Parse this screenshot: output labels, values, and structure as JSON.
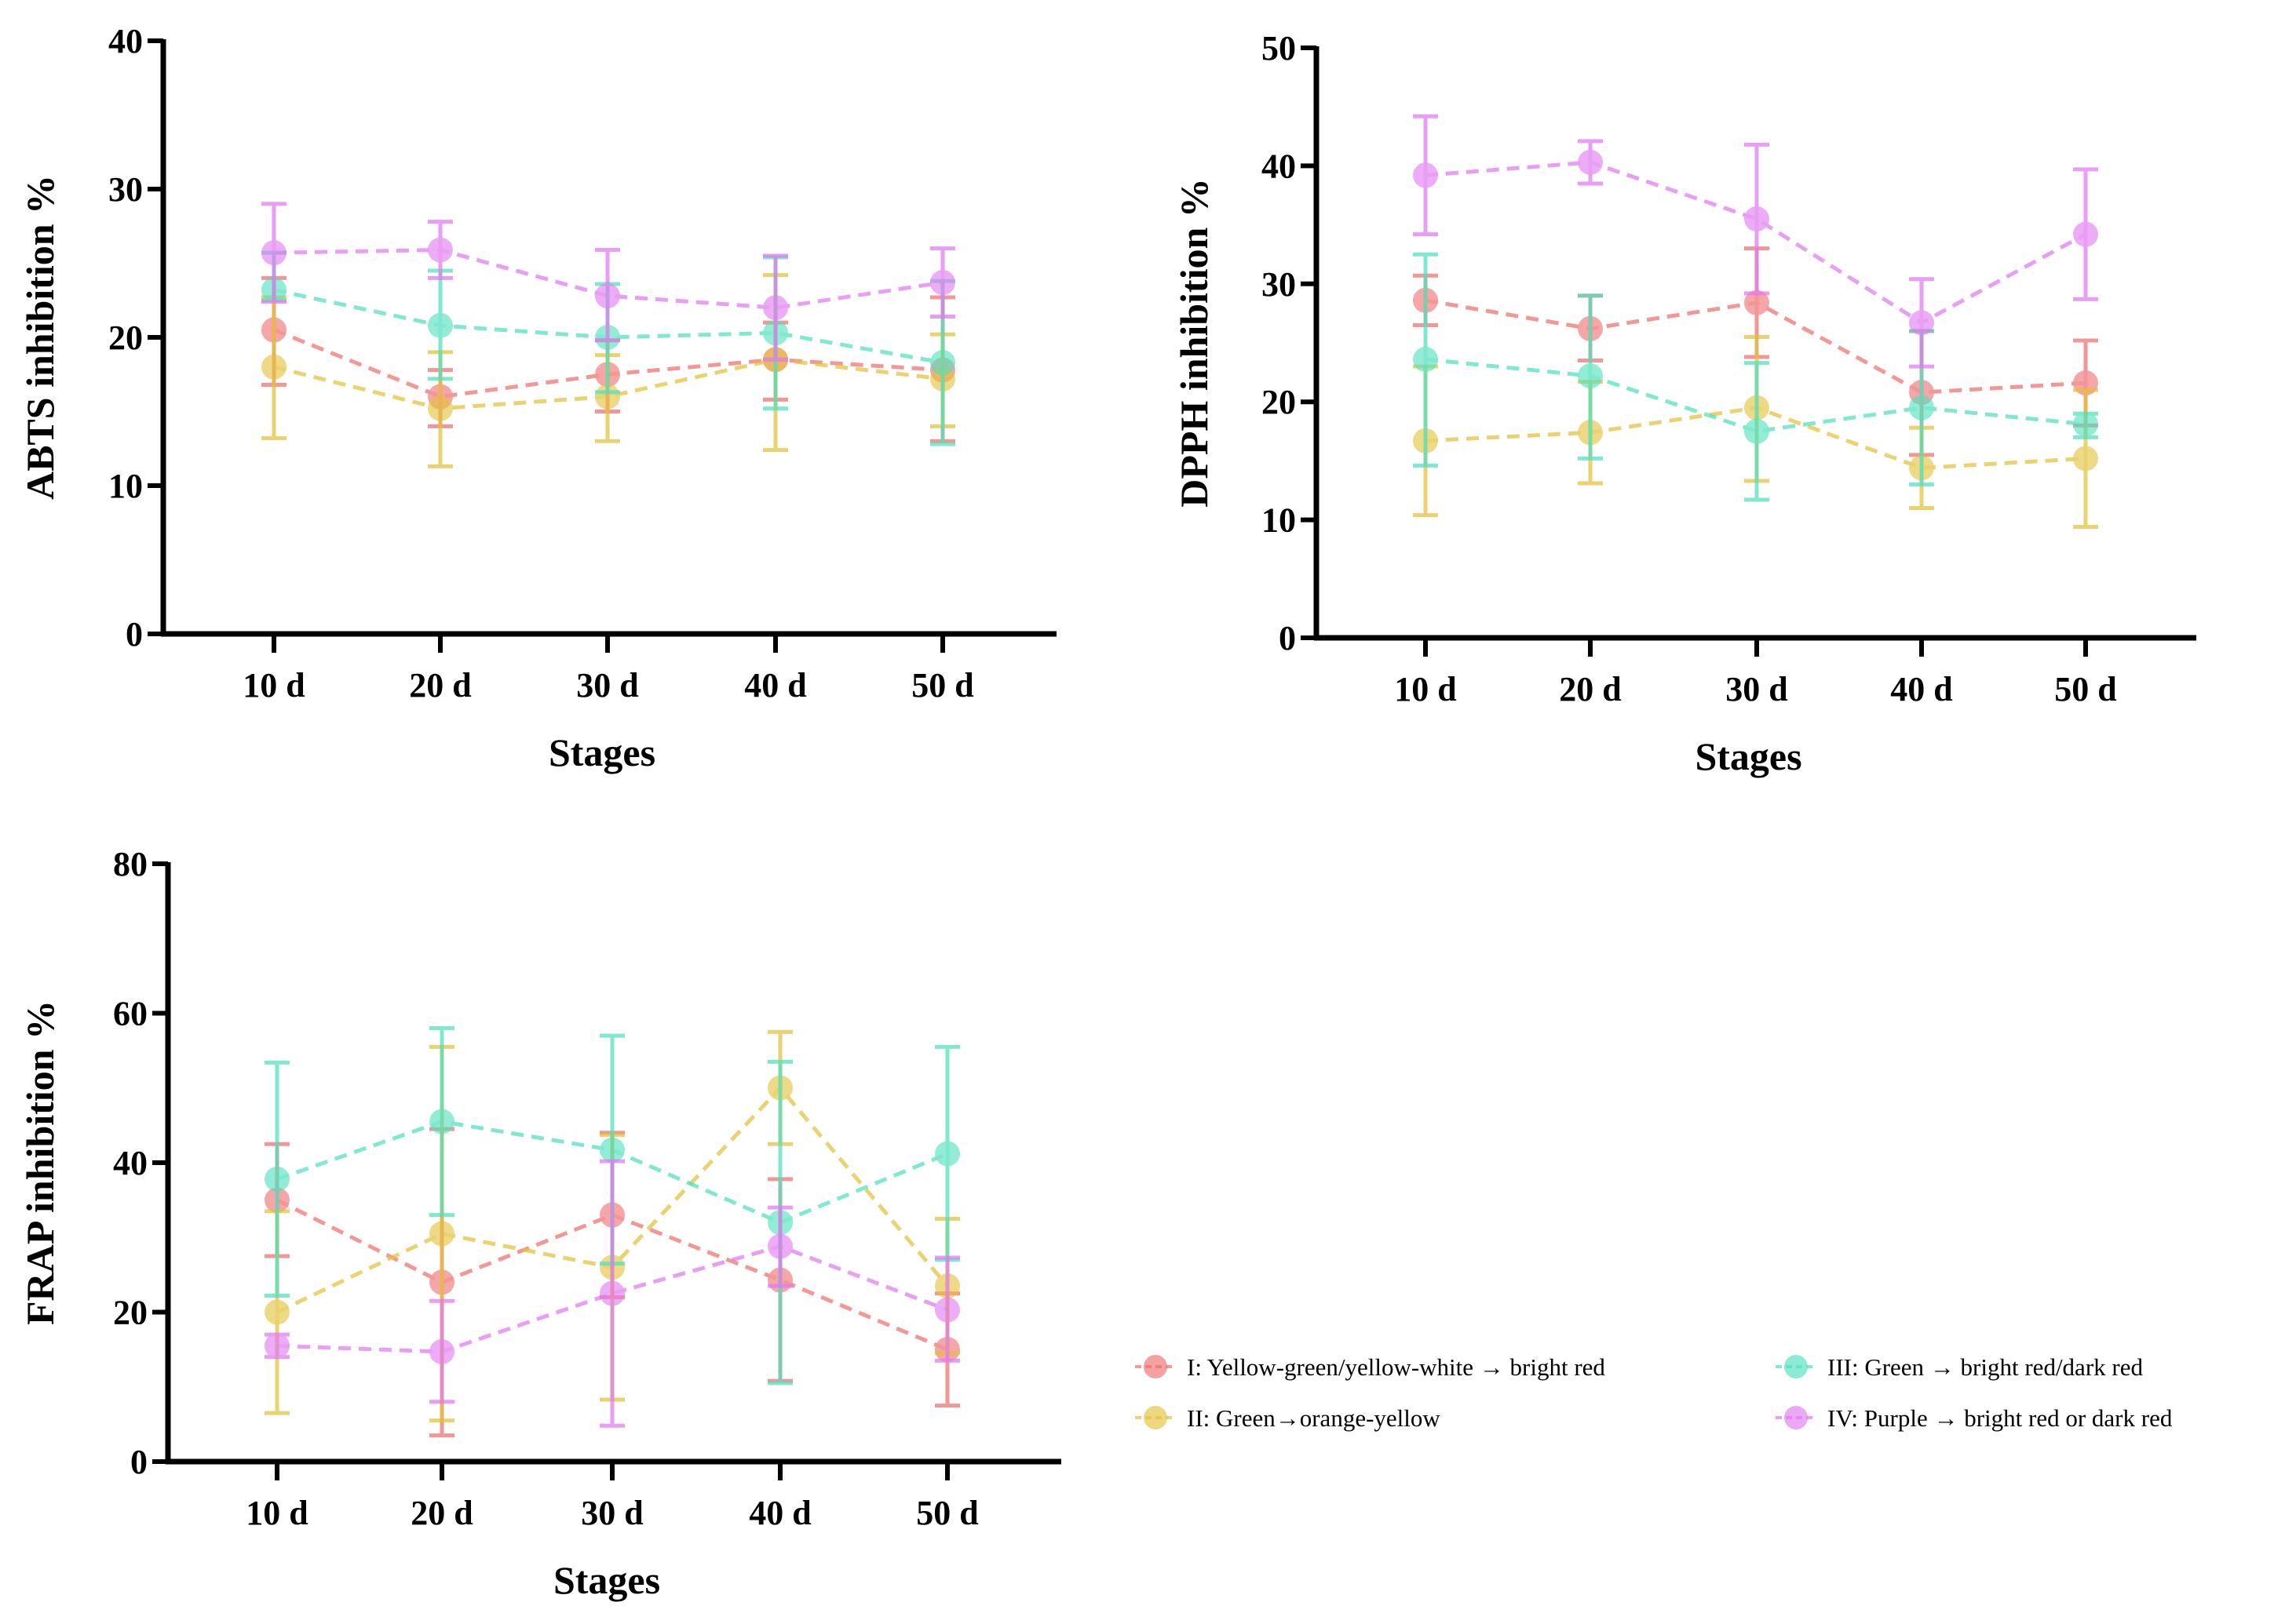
{
  "colors": {
    "I": "#ef6f6f",
    "II": "#e3c23a",
    "III": "#4fe0bd",
    "IV": "#e07af0"
  },
  "legend": [
    {
      "key": "I",
      "label": "I: Yellow-green/yellow-white → bright red"
    },
    {
      "key": "II",
      "label": "II: Green→orange-yellow"
    },
    {
      "key": "III",
      "label": "III: Green → bright red/dark red"
    },
    {
      "key": "IV",
      "label": "IV: Purple → bright red or dark red"
    }
  ],
  "chart_data": [
    {
      "type": "line",
      "title": "",
      "xlabel": "Stages",
      "ylabel": "ABTS inhibition %",
      "categories": [
        "10 d",
        "20 d",
        "30 d",
        "40 d",
        "50 d"
      ],
      "ylim": [
        0,
        40
      ],
      "yticks": [
        0,
        10,
        20,
        30,
        40
      ],
      "series": [
        {
          "key": "I",
          "mean": [
            20.5,
            16.0,
            17.5,
            18.5,
            17.8
          ],
          "lo": [
            16.8,
            14.0,
            15.0,
            15.8,
            13.0
          ],
          "hi": [
            24.0,
            17.8,
            19.8,
            21.0,
            22.7
          ]
        },
        {
          "key": "II",
          "mean": [
            18.0,
            15.2,
            16.0,
            18.5,
            17.2
          ],
          "lo": [
            13.2,
            11.3,
            13.0,
            12.4,
            14.0
          ],
          "hi": [
            22.7,
            19.0,
            18.8,
            24.2,
            20.2
          ]
        },
        {
          "key": "III",
          "mean": [
            23.2,
            20.8,
            20.0,
            20.3,
            18.3
          ],
          "lo": [
            22.5,
            17.2,
            16.3,
            15.2,
            12.8
          ],
          "hi": [
            25.7,
            24.5,
            23.6,
            25.4,
            23.8
          ]
        },
        {
          "key": "IV",
          "mean": [
            25.7,
            25.9,
            22.8,
            22.0,
            23.7
          ],
          "lo": [
            22.4,
            24.0,
            19.8,
            18.5,
            21.4
          ],
          "hi": [
            29.0,
            27.8,
            25.9,
            25.5,
            26.0
          ]
        }
      ]
    },
    {
      "type": "line",
      "title": "",
      "xlabel": "Stages",
      "ylabel": "DPPH inhibition %",
      "categories": [
        "10 d",
        "20 d",
        "30 d",
        "40 d",
        "50 d"
      ],
      "ylim": [
        0,
        50
      ],
      "yticks": [
        0,
        10,
        20,
        30,
        40,
        50
      ],
      "series": [
        {
          "key": "I",
          "mean": [
            28.6,
            26.2,
            28.4,
            20.8,
            21.6
          ],
          "lo": [
            26.5,
            23.5,
            23.8,
            15.5,
            18.0
          ],
          "hi": [
            30.7,
            29.0,
            33.0,
            26.0,
            25.2
          ]
        },
        {
          "key": "II",
          "mean": [
            16.7,
            17.4,
            19.5,
            14.4,
            15.2
          ],
          "lo": [
            10.4,
            13.1,
            13.3,
            11.0,
            9.4
          ],
          "hi": [
            23.0,
            21.7,
            25.5,
            17.8,
            21.0
          ]
        },
        {
          "key": "III",
          "mean": [
            23.6,
            22.2,
            17.5,
            19.5,
            18.1
          ],
          "lo": [
            14.6,
            15.2,
            11.7,
            13.0,
            17.0
          ],
          "hi": [
            32.5,
            29.0,
            23.3,
            26.0,
            19.0
          ]
        },
        {
          "key": "IV",
          "mean": [
            39.2,
            40.3,
            35.5,
            26.7,
            34.2
          ],
          "lo": [
            34.2,
            38.5,
            29.2,
            23.0,
            28.7
          ],
          "hi": [
            44.2,
            42.1,
            41.8,
            30.4,
            39.7
          ]
        }
      ]
    },
    {
      "type": "line",
      "title": "",
      "xlabel": "Stages",
      "ylabel": "FRAP inhibition %",
      "categories": [
        "10 d",
        "20 d",
        "30 d",
        "40 d",
        "50 d"
      ],
      "ylim": [
        0,
        80
      ],
      "yticks": [
        0,
        20,
        40,
        60,
        80
      ],
      "series": [
        {
          "key": "I",
          "mean": [
            35.0,
            24.0,
            33.0,
            24.3,
            15.0
          ],
          "lo": [
            27.5,
            3.5,
            22.0,
            10.8,
            7.5
          ],
          "hi": [
            42.5,
            44.5,
            44.0,
            37.8,
            22.5
          ]
        },
        {
          "key": "II",
          "mean": [
            20.0,
            30.5,
            26.0,
            50.0,
            23.5
          ],
          "lo": [
            6.5,
            5.5,
            8.3,
            42.5,
            14.5
          ],
          "hi": [
            33.5,
            55.5,
            43.7,
            57.5,
            32.5
          ]
        },
        {
          "key": "III",
          "mean": [
            37.8,
            45.5,
            41.7,
            32.0,
            41.2
          ],
          "lo": [
            22.2,
            33.0,
            26.5,
            10.5,
            27.0
          ],
          "hi": [
            53.4,
            58.0,
            57.0,
            53.5,
            55.5
          ]
        },
        {
          "key": "IV",
          "mean": [
            15.5,
            14.7,
            22.5,
            28.8,
            20.3
          ],
          "lo": [
            14.0,
            8.0,
            4.8,
            23.5,
            13.5
          ],
          "hi": [
            17.0,
            21.5,
            40.2,
            34.0,
            27.3
          ]
        }
      ]
    }
  ]
}
